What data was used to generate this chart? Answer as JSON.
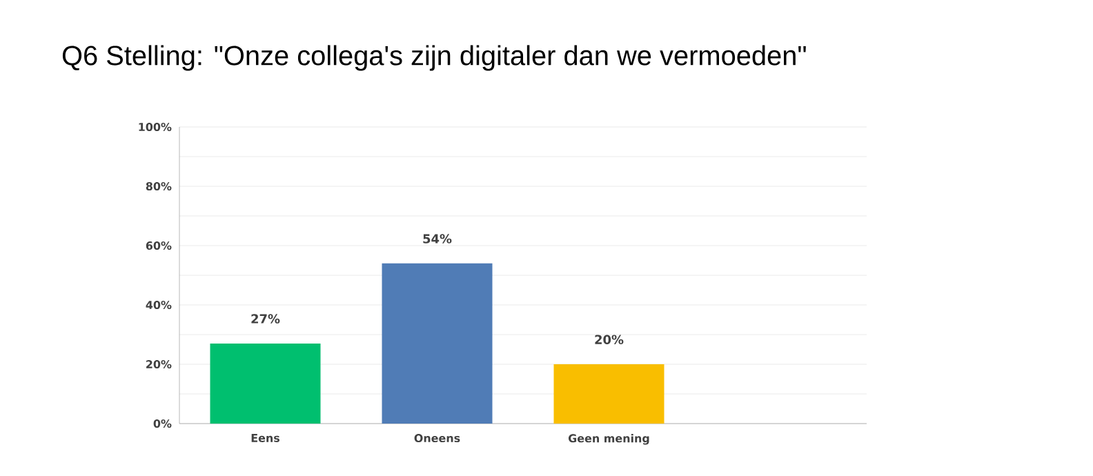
{
  "chart_data": {
    "type": "bar",
    "title": "Q6 Stelling: \"Onze collega's zijn digitaler dan we vermoeden\"",
    "categories": [
      "Eens",
      "Oneens",
      "Geen mening",
      null
    ],
    "values": [
      27,
      54,
      20,
      null
    ],
    "colors": [
      "#00bf6f",
      "#507cb6",
      "#f9be00",
      null
    ],
    "value_labels": [
      "27%",
      "54%",
      "20%",
      null
    ],
    "ylim": [
      0,
      100
    ],
    "yticks": [
      {
        "value": 0,
        "label": "0%"
      },
      {
        "value": 10,
        "label": null
      },
      {
        "value": 20,
        "label": "20%"
      },
      {
        "value": 30,
        "label": null
      },
      {
        "value": 40,
        "label": "40%"
      },
      {
        "value": 50,
        "label": null
      },
      {
        "value": 60,
        "label": "60%"
      },
      {
        "value": 70,
        "label": null
      },
      {
        "value": 80,
        "label": "80%"
      },
      {
        "value": 90,
        "label": null
      },
      {
        "value": 100,
        "label": "100%"
      }
    ],
    "grid": "y"
  }
}
